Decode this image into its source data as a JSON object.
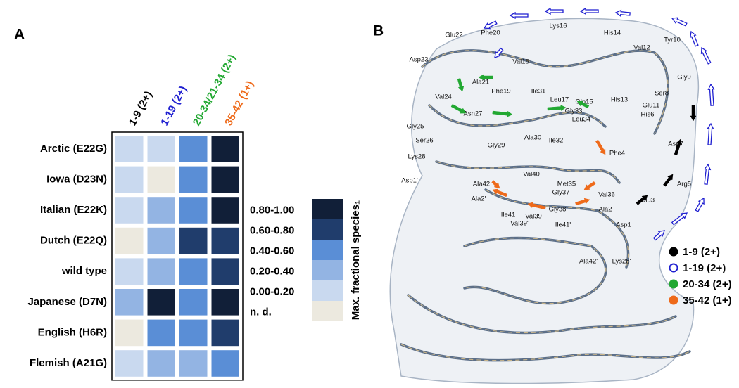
{
  "panel_a": {
    "label": "A",
    "columns": [
      {
        "label": "1-9 (2+)",
        "color": "#000000"
      },
      {
        "label": "1-19 (2+)",
        "color": "#1f1fd0"
      },
      {
        "label": "20-34/21-34 (2+)",
        "color": "#22a832"
      },
      {
        "label": "35-42 (1+)",
        "color": "#ee6a1a"
      }
    ],
    "rows": [
      "Arctic (E22G)",
      "Iowa (D23N)",
      "Italian (E22K)",
      "Dutch (E22Q)",
      "wild type",
      "Japanese (D7N)",
      "English (H6R)",
      "Flemish (A21G)"
    ],
    "cells": [
      [
        "0.00-0.20",
        "0.00-0.20",
        "0.40-0.60",
        "0.80-1.00"
      ],
      [
        "0.00-0.20",
        "n. d.",
        "0.40-0.60",
        "0.80-1.00"
      ],
      [
        "0.00-0.20",
        "0.20-0.40",
        "0.40-0.60",
        "0.80-1.00"
      ],
      [
        "n. d.",
        "0.20-0.40",
        "0.60-0.80",
        "0.60-0.80"
      ],
      [
        "0.00-0.20",
        "0.20-0.40",
        "0.40-0.60",
        "0.60-0.80"
      ],
      [
        "0.20-0.40",
        "0.80-1.00",
        "0.40-0.60",
        "0.80-1.00"
      ],
      [
        "n. d.",
        "0.40-0.60",
        "0.40-0.60",
        "0.60-0.80"
      ],
      [
        "0.00-0.20",
        "0.20-0.40",
        "0.20-0.40",
        "0.40-0.60"
      ]
    ],
    "legend": {
      "title": "Max. fractional species₁",
      "levels": [
        {
          "label": "0.80-1.00",
          "color": "#111f38"
        },
        {
          "label": "0.60-0.80",
          "color": "#203d6c"
        },
        {
          "label": "0.40-0.60",
          "color": "#5a8ed6"
        },
        {
          "label": "0.20-0.40",
          "color": "#93b4e3"
        },
        {
          "label": "0.00-0.20",
          "color": "#c9d9ef"
        },
        {
          "label": "n. d.",
          "color": "#ece9df"
        }
      ]
    }
  },
  "panel_b": {
    "label": "B",
    "residues": [
      "Glu22",
      "Phe20",
      "Lys16",
      "His14",
      "Tyr10",
      "Val12",
      "Asp23",
      "Val18",
      "Ala21",
      "Phe19",
      "Ile31",
      "Leu17",
      "Gln15",
      "His13",
      "Ser8",
      "Gly9",
      "Glu11",
      "Val24",
      "Asn27",
      "Gly33",
      "Leu34",
      "His6",
      "Gly25",
      "Ser26",
      "Gly29",
      "Ala30",
      "Ile32",
      "Phe4",
      "Asp7",
      "Lys28",
      "Val40",
      "Met35",
      "Gly37",
      "Val36",
      "Ala42",
      "Ala2'",
      "Asp1'",
      "Arg5",
      "Ala2",
      "Gly38",
      "Ile41",
      "Val39",
      "Val39'",
      "Ile41'",
      "Glu3",
      "Asp1",
      "Ala42'",
      "Lys28'"
    ],
    "legend": [
      {
        "label": "1-9 (2+)",
        "color": "#000000",
        "marker": "filled"
      },
      {
        "label": "1-19 (2+)",
        "color": "#1f1fd0",
        "marker": "open"
      },
      {
        "label": "20-34 (2+)",
        "color": "#22a832",
        "marker": "filled"
      },
      {
        "label": "35-42 (1+)",
        "color": "#ee6a1a",
        "marker": "filled"
      }
    ]
  }
}
